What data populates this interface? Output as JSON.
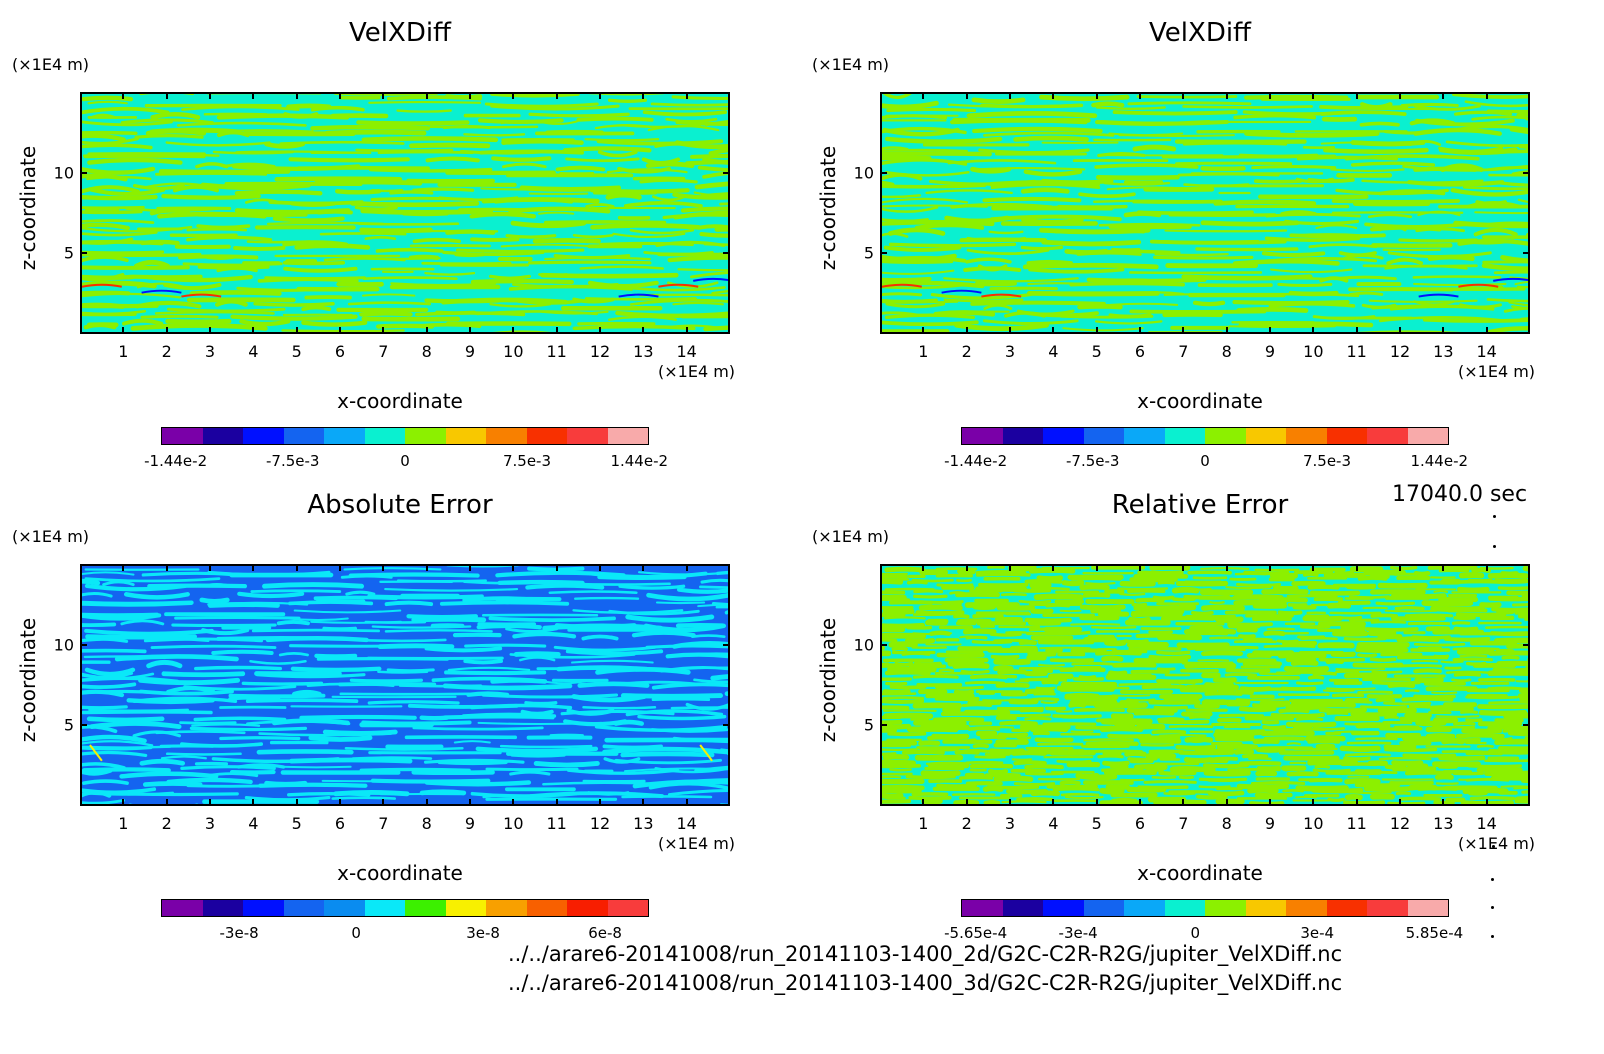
{
  "colors": {
    "velx": [
      "#7a00a8",
      "#1b00a0",
      "#0010ff",
      "#1464f0",
      "#0aa8f8",
      "#0af0d0",
      "#8cf000",
      "#f8c800",
      "#f88000",
      "#f83000",
      "#f83c3c",
      "#f8aaaa"
    ],
    "abs": [
      "#7a00a8",
      "#1b00a0",
      "#0010ff",
      "#1464f0",
      "#0a8cf0",
      "#0ae8f8",
      "#3cf000",
      "#f8f000",
      "#f8a000",
      "#f86000",
      "#f81e00",
      "#f83c3c"
    ],
    "rel": [
      "#7a00a8",
      "#1b00a0",
      "#0010ff",
      "#1464f0",
      "#0aa8f8",
      "#0af0d0",
      "#8cf000",
      "#f8c800",
      "#f88000",
      "#f83000",
      "#f83c3c",
      "#f8aaaa"
    ]
  },
  "time_label": "17040.0 sec",
  "file_paths": [
    "../../arare6-20141008/run_20141103-1400_2d/G2C-C2R-R2G/jupiter_VelXDiff.nc",
    "../../arare6-20141008/run_20141103-1400_3d/G2C-C2R-R2G/jupiter_VelXDiff.nc"
  ],
  "chart_data": [
    {
      "type": "heatmap",
      "title": "VelXDiff",
      "xlabel": "x-coordinate",
      "ylabel": "z-coordinate",
      "x_unit": "(×1E4 m)",
      "y_unit": "(×1E4 m)",
      "xlim": [
        0,
        15
      ],
      "ylim": [
        0,
        15
      ],
      "x_ticks": [
        "1",
        "2",
        "3",
        "4",
        "5",
        "6",
        "7",
        "8",
        "9",
        "10",
        "11",
        "12",
        "13",
        "14"
      ],
      "y_ticks": [
        "5",
        "10"
      ],
      "colorbar_range": [
        -0.0144,
        0.0144
      ],
      "colorbar_ticks": [
        "-1.44e-2",
        "-7.5e-3",
        "0",
        "7.5e-3",
        "1.44e-2"
      ],
      "colormap": "velx"
    },
    {
      "type": "heatmap",
      "title": "VelXDiff",
      "xlabel": "x-coordinate",
      "ylabel": "z-coordinate",
      "x_unit": "(×1E4 m)",
      "y_unit": "(×1E4 m)",
      "xlim": [
        0,
        15
      ],
      "ylim": [
        0,
        15
      ],
      "x_ticks": [
        "1",
        "2",
        "3",
        "4",
        "5",
        "6",
        "7",
        "8",
        "9",
        "10",
        "11",
        "12",
        "13",
        "14"
      ],
      "y_ticks": [
        "5",
        "10"
      ],
      "colorbar_range": [
        -0.0144,
        0.0144
      ],
      "colorbar_ticks": [
        "-1.44e-2",
        "-7.5e-3",
        "0",
        "7.5e-3",
        "1.44e-2"
      ],
      "colormap": "velx"
    },
    {
      "type": "heatmap",
      "title": "Absolute Error",
      "xlabel": "x-coordinate",
      "ylabel": "z-coordinate",
      "x_unit": "(×1E4 m)",
      "y_unit": "(×1E4 m)",
      "xlim": [
        0,
        15
      ],
      "ylim": [
        0,
        15
      ],
      "x_ticks": [
        "1",
        "2",
        "3",
        "4",
        "5",
        "6",
        "7",
        "8",
        "9",
        "10",
        "11",
        "12",
        "13",
        "14"
      ],
      "y_ticks": [
        "5",
        "10"
      ],
      "colorbar_range": [
        -5.5e-08,
        8e-08
      ],
      "colorbar_ticks": [
        "-3e-8",
        "0",
        "3e-8",
        "6e-8"
      ],
      "colormap": "abs"
    },
    {
      "type": "heatmap",
      "title": "Relative Error",
      "xlabel": "x-coordinate",
      "ylabel": "z-coordinate",
      "x_unit": "(×1E4 m)",
      "y_unit": "(×1E4 m)",
      "xlim": [
        0,
        15
      ],
      "ylim": [
        0,
        15
      ],
      "x_ticks": [
        "1",
        "2",
        "3",
        "4",
        "5",
        "6",
        "7",
        "8",
        "9",
        "10",
        "11",
        "12",
        "13",
        "14"
      ],
      "y_ticks": [
        "5",
        "10"
      ],
      "colorbar_range": [
        -0.000565,
        0.000585
      ],
      "colorbar_ticks": [
        "-5.65e-4",
        "-3e-4",
        "0",
        "3e-4",
        "5.85e-4"
      ],
      "colormap": "rel"
    }
  ]
}
